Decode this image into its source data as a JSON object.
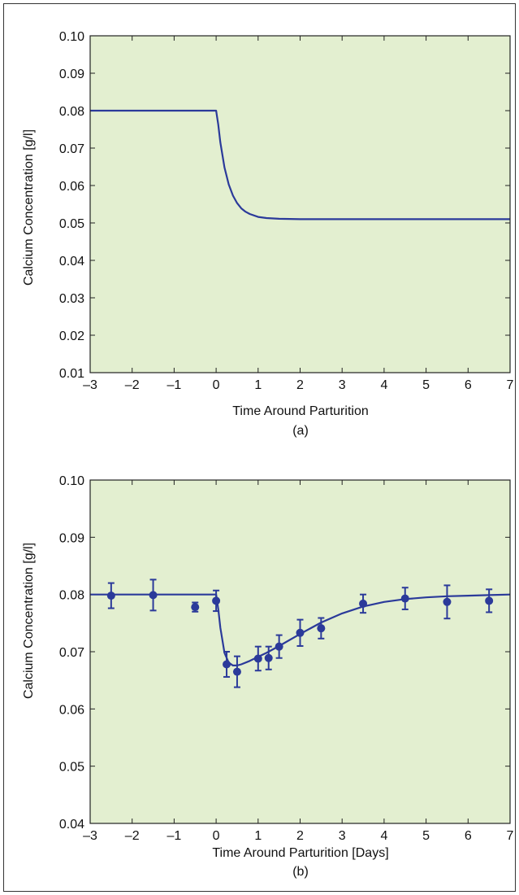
{
  "colors": {
    "plot_background": "#e3efd0",
    "series": "#2b3a9a",
    "axis": "#222222"
  },
  "chart_data": [
    {
      "type": "line",
      "caption": "(a)",
      "xlabel": "Time Around Parturition",
      "ylabel": "Calcium Concentration [g/l]",
      "xlim": [
        -3,
        7
      ],
      "ylim": [
        0.01,
        0.1
      ],
      "xticks": [
        -3,
        -2,
        -1,
        0,
        1,
        2,
        3,
        4,
        5,
        6,
        7
      ],
      "xtick_labels": [
        "–3",
        "–2",
        "–1",
        "0",
        "1",
        "2",
        "3",
        "4",
        "5",
        "6",
        "7"
      ],
      "yticks": [
        0.01,
        0.02,
        0.03,
        0.04,
        0.05,
        0.06,
        0.07,
        0.08,
        0.09,
        0.1
      ],
      "ytick_labels": [
        "0.01",
        "0.02",
        "0.03",
        "0.04",
        "0.05",
        "0.06",
        "0.07",
        "0.08",
        "0.09",
        "0.10"
      ],
      "grid": false,
      "series": [
        {
          "x": [
            -3,
            -2,
            -1,
            0,
            0.05,
            0.1,
            0.2,
            0.3,
            0.4,
            0.5,
            0.6,
            0.7,
            0.8,
            1.0,
            1.2,
            1.5,
            2,
            3,
            4,
            5,
            6,
            7
          ],
          "y": [
            0.08,
            0.08,
            0.08,
            0.08,
            0.0763,
            0.0715,
            0.0648,
            0.0603,
            0.0573,
            0.0553,
            0.0539,
            0.053,
            0.0524,
            0.0516,
            0.0513,
            0.0511,
            0.051,
            0.051,
            0.051,
            0.051,
            0.051,
            0.051
          ]
        }
      ]
    },
    {
      "type": "line",
      "caption": "(b)",
      "xlabel": "Time Around Parturition [Days]",
      "ylabel": "Calcium Concentration [g/l]",
      "xlim": [
        -3,
        7
      ],
      "ylim": [
        0.04,
        0.1
      ],
      "xticks": [
        -3,
        -2,
        -1,
        0,
        1,
        2,
        3,
        4,
        5,
        6,
        7
      ],
      "xtick_labels": [
        "–3",
        "–2",
        "–1",
        "0",
        "1",
        "2",
        "3",
        "4",
        "5",
        "6",
        "7"
      ],
      "yticks": [
        0.04,
        0.05,
        0.06,
        0.07,
        0.08,
        0.09,
        0.1
      ],
      "ytick_labels": [
        "0.04",
        "0.05",
        "0.06",
        "0.07",
        "0.08",
        "0.09",
        "0.10"
      ],
      "grid": false,
      "series": [
        {
          "x": [
            -3,
            -2,
            -1,
            0,
            0.05,
            0.1,
            0.2,
            0.3,
            0.4,
            0.5,
            0.6,
            0.8,
            1.0,
            1.2,
            1.5,
            2.0,
            2.5,
            3.0,
            3.5,
            4.0,
            4.5,
            5.0,
            5.5,
            6.0,
            6.5,
            7.0
          ],
          "y": [
            0.08,
            0.08,
            0.08,
            0.08,
            0.0775,
            0.0742,
            0.0698,
            0.0681,
            0.0676,
            0.0676,
            0.0678,
            0.0684,
            0.0691,
            0.0698,
            0.071,
            0.0731,
            0.0751,
            0.0767,
            0.0779,
            0.0787,
            0.0792,
            0.0795,
            0.0797,
            0.0798,
            0.0799,
            0.08
          ]
        },
        {
          "type": "scatter",
          "errorbars": true,
          "x": [
            -2.5,
            -1.5,
            -0.5,
            0,
            0.25,
            0.5,
            1.0,
            1.25,
            1.5,
            2.0,
            2.5,
            3.5,
            4.5,
            5.5,
            6.5
          ],
          "y": [
            0.0798,
            0.0799,
            0.0778,
            0.0789,
            0.0678,
            0.0665,
            0.0688,
            0.0689,
            0.0709,
            0.0733,
            0.0741,
            0.0784,
            0.0793,
            0.0787,
            0.0789
          ],
          "err": [
            0.0022,
            0.0027,
            0.0008,
            0.0018,
            0.0022,
            0.0027,
            0.0021,
            0.002,
            0.002,
            0.0023,
            0.0018,
            0.0016,
            0.0019,
            0.0029,
            0.002
          ]
        }
      ]
    }
  ]
}
